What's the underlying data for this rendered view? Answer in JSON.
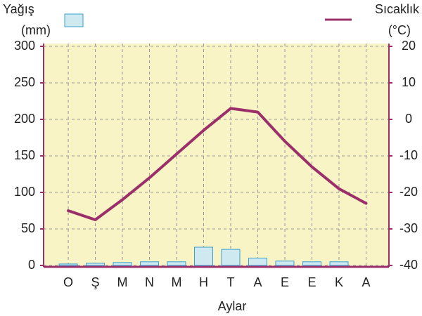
{
  "chart_data": {
    "type": "bar-line",
    "x_label": "Aylar",
    "y_unit": "(mm)",
    "y2_unit": "(°C)",
    "categories": [
      "O",
      "Ş",
      "M",
      "N",
      "M",
      "H",
      "T",
      "A",
      "E",
      "E",
      "K",
      "A"
    ],
    "series": [
      {
        "name": "Yağış",
        "type": "bar",
        "color": "#cfe9f1",
        "edge": "#3a9fd0",
        "values": [
          2,
          3,
          4,
          5,
          5,
          25,
          22,
          10,
          6,
          5,
          5,
          0
        ]
      },
      {
        "name": "Sıcaklık",
        "type": "line",
        "axis": "y2",
        "color": "#9b2f6a",
        "values": [
          -25,
          -27.5,
          -22,
          -16,
          -9.5,
          -3,
          3,
          2,
          -6,
          -13,
          -19,
          -23
        ]
      }
    ],
    "ylim": [
      0,
      300
    ],
    "yticks": [
      0,
      50,
      100,
      150,
      200,
      250,
      300
    ],
    "y2lim": [
      -40,
      20
    ],
    "y2ticks": [
      -40,
      -30,
      -20,
      -10,
      0,
      10,
      20
    ],
    "grid": true
  }
}
